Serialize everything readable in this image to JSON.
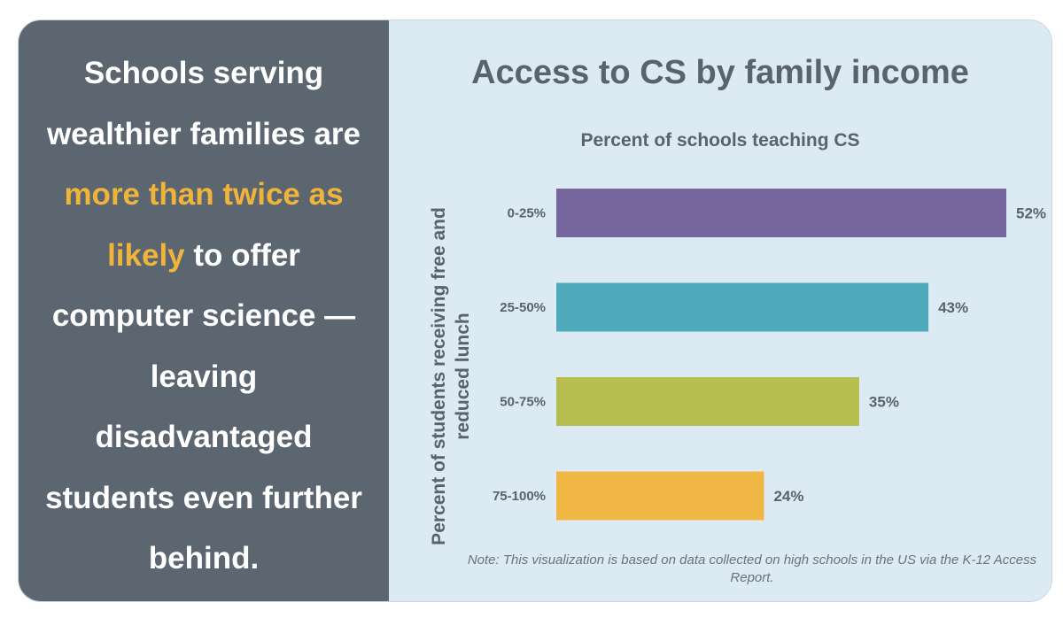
{
  "statement": {
    "part1": "Schools serving wealthier families are ",
    "highlight": "more than twice as likely",
    "part2": " to offer computer science — leaving disadvantaged students even further behind."
  },
  "chart_data": {
    "type": "bar",
    "orientation": "horizontal",
    "title": "Access to CS by family income",
    "subtitle": "Percent of schools teaching CS",
    "ylabel": "Percent of students receiving free and reduced lunch",
    "xlabel": "",
    "categories": [
      "0-25%",
      "25-50%",
      "50-75%",
      "75-100%"
    ],
    "values": [
      52,
      43,
      35,
      24
    ],
    "value_labels": [
      "52%",
      "43%",
      "35%",
      "24%"
    ],
    "colors": [
      "#76689f",
      "#4eaabb",
      "#b7bd4f",
      "#f0b744"
    ],
    "xlim": [
      0,
      52
    ],
    "grid": false,
    "note": "Note: This visualization is based on data collected on high schools in the US via the K-12 Access Report."
  },
  "colors": {
    "left_panel": "#5c6670",
    "highlight": "#f0b43a",
    "right_panel": "#dbeaf3",
    "text": "#5a636c"
  }
}
